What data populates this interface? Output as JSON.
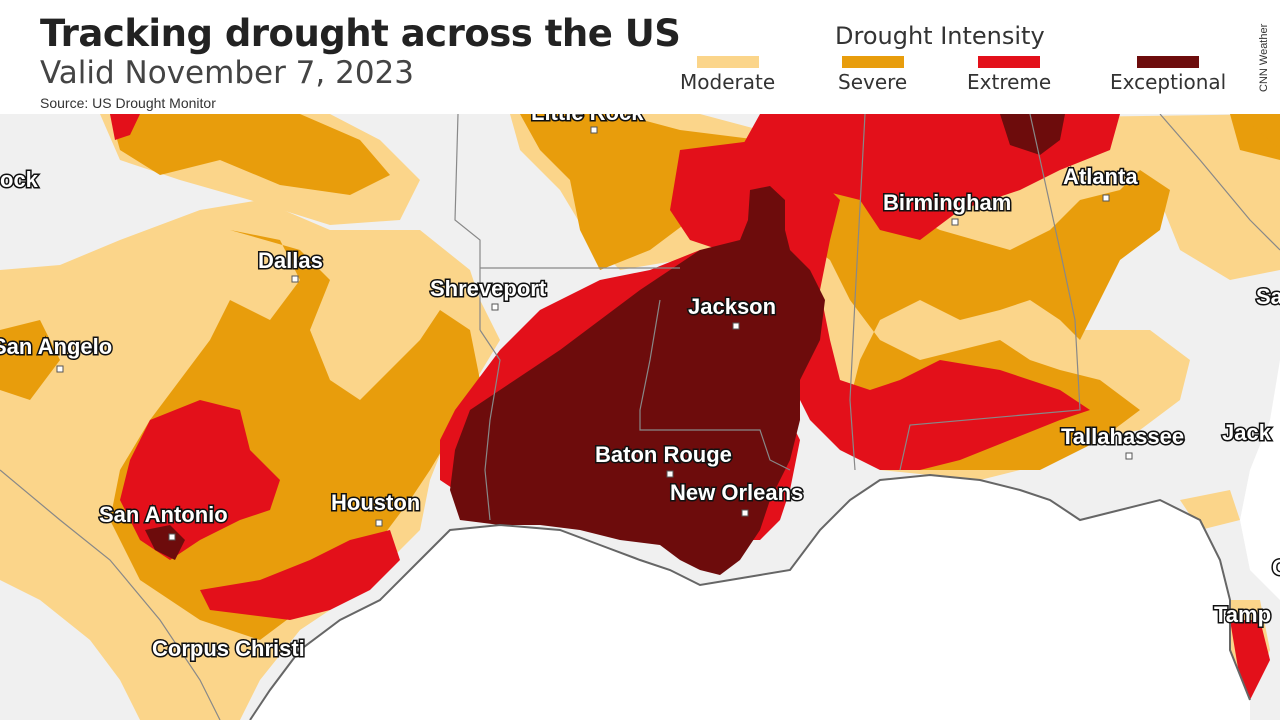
{
  "header": {
    "title": "Tracking drought across the US",
    "subtitle": "Valid November 7, 2023",
    "source": "Source: US Drought Monitor",
    "credit": "CNN Weather"
  },
  "legend": {
    "title": "Drought Intensity",
    "items": [
      {
        "label": "Moderate",
        "color": "#fbd58a"
      },
      {
        "label": "Severe",
        "color": "#e89d0c"
      },
      {
        "label": "Extreme",
        "color": "#e3101a"
      },
      {
        "label": "Exceptional",
        "color": "#6d0c0c"
      }
    ]
  },
  "map": {
    "land_color": "#f0f0f0",
    "water_color": "#ffffff",
    "cities": [
      "Little Rock",
      "Dallas",
      "Shreveport",
      "Jackson",
      "Birmingham",
      "Atlanta",
      "San Angelo",
      "San Antonio",
      "Houston",
      "Baton Rouge",
      "New Orleans",
      "Tallahassee",
      "Corpus Christi",
      "Lubbock",
      "Jacksonville",
      "Tampa",
      "Savannah",
      "Orlando"
    ],
    "visible_partial_labels": [
      "ock",
      "Jack",
      "Sa",
      "Tamp",
      "O"
    ]
  }
}
